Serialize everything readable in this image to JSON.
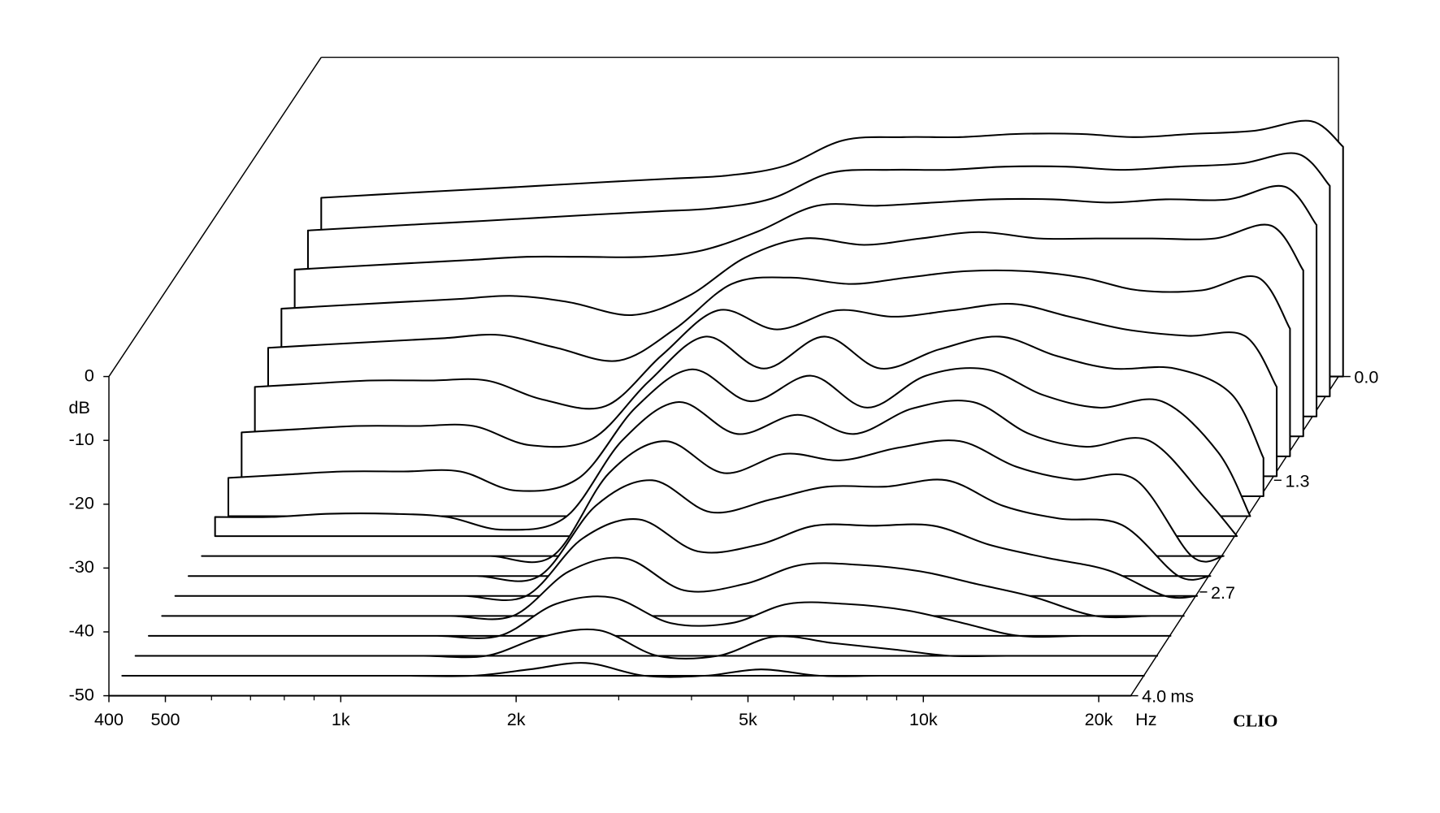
{
  "chart_data": {
    "type": "waterfall",
    "x": [
      400,
      500,
      630,
      800,
      1000,
      1250,
      1600,
      2000,
      2500,
      3150,
      4000,
      5000,
      6300,
      8000,
      10000,
      12500,
      16000,
      20000,
      22700
    ],
    "xlim": [
      400,
      22700
    ],
    "log_x": true,
    "xticks": [
      400,
      500,
      {
        "value": 1000,
        "label": "1k"
      },
      {
        "value": 2000,
        "label": "2k"
      },
      {
        "value": 5000,
        "label": "5k"
      },
      {
        "value": 10000,
        "label": "10k"
      },
      {
        "value": 20000,
        "label": "20k"
      }
    ],
    "xminorticks": [
      600,
      700,
      800,
      900,
      3000,
      4000,
      6000,
      7000,
      8000,
      9000
    ],
    "x_unit": "Hz",
    "ylim": [
      -50,
      0
    ],
    "yticks": [
      -50,
      -40,
      -30,
      -20,
      -10,
      0
    ],
    "y_unit": "dB",
    "zlim": [
      4.0,
      0.0
    ],
    "zticks": [
      {
        "value": 0.0,
        "label": "0.0"
      },
      {
        "value": 1.3,
        "label": "1.3"
      },
      {
        "value": 2.7,
        "label": "2.7"
      },
      {
        "value": 4.0,
        "label": "4.0"
      }
    ],
    "z_unit": "ms",
    "brand": "CLIO",
    "color": "#000000",
    "series": [
      {
        "z": 0.0,
        "values": [
          -22,
          -21.5,
          -21,
          -20.5,
          -20,
          -19.5,
          -19,
          -18.5,
          -17,
          -13,
          -12.5,
          -12.5,
          -12,
          -12,
          -12.5,
          -12,
          -11.5,
          -10,
          -14
        ]
      },
      {
        "z": 0.25,
        "values": [
          -24,
          -23.5,
          -23,
          -22.5,
          -22,
          -21.5,
          -21,
          -20.5,
          -19,
          -15,
          -14.5,
          -14.5,
          -14,
          -14,
          -14.5,
          -14,
          -13.5,
          -12,
          -17
        ]
      },
      {
        "z": 0.5,
        "values": [
          -27,
          -26.5,
          -26,
          -25.5,
          -25,
          -25,
          -25,
          -24,
          -21,
          -17,
          -17,
          -16.5,
          -16,
          -16,
          -16.5,
          -16,
          -16,
          -14,
          -20
        ]
      },
      {
        "z": 0.75,
        "values": [
          -30,
          -29.5,
          -29,
          -28.5,
          -28,
          -29,
          -31,
          -28,
          -22,
          -19,
          -20,
          -19,
          -18,
          -19,
          -19,
          -19,
          -19,
          -17,
          -24
        ]
      },
      {
        "z": 1.0,
        "values": [
          -33,
          -32.5,
          -32,
          -31.5,
          -31,
          -33,
          -35,
          -30,
          -23,
          -22,
          -23,
          -22,
          -21,
          -21,
          -22,
          -24,
          -24,
          -22,
          -30
        ]
      },
      {
        "z": 1.25,
        "values": [
          -36,
          -35.5,
          -35,
          -35,
          -35,
          -38,
          -39,
          -31,
          -24,
          -27,
          -24,
          -25,
          -24,
          -23,
          -25,
          -27,
          -28,
          -28,
          -36
        ]
      },
      {
        "z": 1.5,
        "values": [
          -40,
          -39.5,
          -39,
          -39,
          -39,
          -42,
          -41,
          -32,
          -25,
          -30,
          -25,
          -30,
          -27,
          -25,
          -28,
          -30,
          -30,
          -34,
          -44
        ]
      },
      {
        "z": 1.75,
        "values": [
          -44,
          -43.5,
          -43,
          -43,
          -43,
          -46,
          -44,
          -33,
          -27,
          -32,
          -28,
          -33,
          -28,
          -27,
          -31,
          -33,
          -32,
          -40,
          -50
        ]
      },
      {
        "z": 2.0,
        "values": [
          -47,
          -47,
          -46.5,
          -46.5,
          -47,
          -49,
          -47,
          -35,
          -29,
          -34,
          -31,
          -34,
          -30,
          -29,
          -34,
          -36,
          -35,
          -44,
          -50
        ]
      },
      {
        "z": 2.25,
        "values": [
          -50,
          -50,
          -50,
          -50,
          -50,
          -50,
          -50,
          -37,
          -32,
          -37,
          -34,
          -35,
          -33,
          -32,
          -36,
          -38,
          -38,
          -50,
          -50
        ]
      },
      {
        "z": 2.5,
        "values": [
          -50,
          -50,
          -50,
          -50,
          -50,
          -50,
          -50,
          -39,
          -35,
          -40,
          -38,
          -36,
          -36,
          -35,
          -39,
          -41,
          -42,
          -50,
          -50
        ]
      },
      {
        "z": 2.75,
        "values": [
          -50,
          -50,
          -50,
          -50,
          -50,
          -50,
          -50,
          -41,
          -38,
          -43,
          -42,
          -39,
          -39,
          -39,
          -42,
          -44,
          -46,
          -50,
          -50
        ]
      },
      {
        "z": 3.0,
        "values": [
          -50,
          -50,
          -50,
          -50,
          -50,
          -50,
          -50,
          -43,
          -41,
          -46,
          -45,
          -42,
          -42,
          -43,
          -45,
          -47,
          -50,
          -50,
          -50
        ]
      },
      {
        "z": 3.25,
        "values": [
          -50,
          -50,
          -50,
          -50,
          -50,
          -50,
          -50,
          -45,
          -44,
          -48,
          -48,
          -45,
          -45,
          -46,
          -48,
          -50,
          -50,
          -50,
          -50
        ]
      },
      {
        "z": 3.5,
        "values": [
          -50,
          -50,
          -50,
          -50,
          -50,
          -50,
          -50,
          -47,
          -46,
          -50,
          -50,
          -47,
          -48,
          -49,
          -50,
          -50,
          -50,
          -50,
          -50
        ]
      },
      {
        "z": 3.75,
        "values": [
          -50,
          -50,
          -50,
          -50,
          -50,
          -50,
          -50,
          -49,
          -48,
          -50,
          -50,
          -49,
          -50,
          -50,
          -50,
          -50,
          -50,
          -50,
          -50
        ]
      },
      {
        "z": 4.0,
        "values": [
          -50,
          -50,
          -50,
          -50,
          -50,
          -50,
          -50,
          -50,
          -50,
          -50,
          -50,
          -50,
          -50,
          -50,
          -50,
          -50,
          -50,
          -50,
          -50
        ]
      }
    ]
  }
}
